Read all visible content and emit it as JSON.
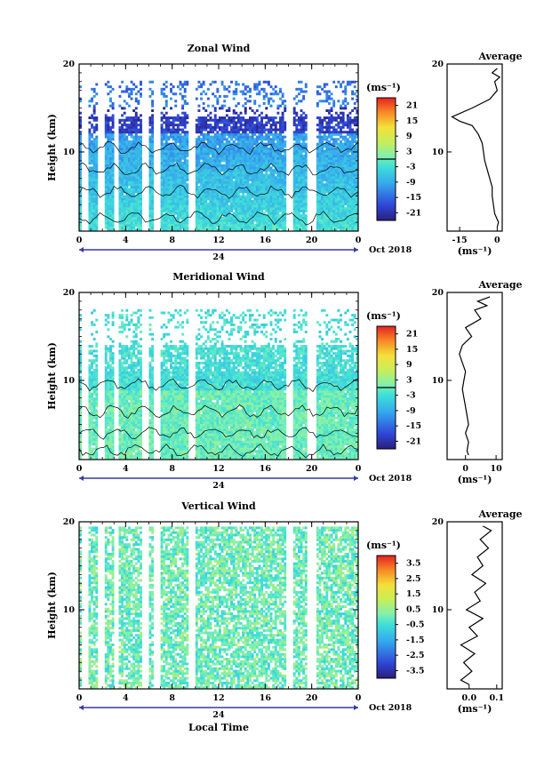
{
  "chart_data": [
    {
      "type": "heatmap",
      "title": "Zonal Wind",
      "ylabel": "Height (km)",
      "xlabel": "",
      "xlim": [
        0,
        24
      ],
      "ylim": [
        1,
        20
      ],
      "x_ticks": [
        "0",
        "4",
        "8",
        "12",
        "16",
        "20",
        "0"
      ],
      "y_ticks": [
        "10",
        "20"
      ],
      "date_label": "24",
      "date_suffix": "Oct 2018",
      "colorbar": {
        "unit": "(ms⁻¹)",
        "ticks": [
          "21",
          "15",
          "9",
          "3",
          "-3",
          "-9",
          "-15",
          "-21"
        ],
        "range": [
          -24,
          24
        ]
      },
      "profile": {
        "title": "Average",
        "xlabel": "(ms⁻¹)",
        "xlim": [
          -20,
          2
        ],
        "x_ticks": [
          "-15",
          "0"
        ],
        "heights": [
          1.5,
          2,
          3,
          4,
          5,
          6,
          7,
          8,
          9,
          10,
          11,
          12,
          13,
          13.5,
          14,
          15,
          16,
          17,
          18,
          18.5,
          19,
          19.5
        ],
        "values": [
          0,
          0.5,
          -1,
          -1.5,
          -2,
          -2,
          -3,
          -4,
          -5,
          -5.5,
          -6,
          -7.5,
          -10,
          -15,
          -18,
          -10,
          -3,
          0,
          -1,
          1,
          -2,
          0
        ]
      }
    },
    {
      "type": "heatmap",
      "title": "Meridional Wind",
      "ylabel": "Height (km)",
      "xlabel": "",
      "xlim": [
        0,
        24
      ],
      "ylim": [
        1,
        20
      ],
      "x_ticks": [
        "0",
        "4",
        "8",
        "12",
        "16",
        "20",
        "0"
      ],
      "y_ticks": [
        "10",
        "20"
      ],
      "date_label": "24",
      "date_suffix": "Oct 2018",
      "colorbar": {
        "unit": "(ms⁻¹)",
        "ticks": [
          "21",
          "15",
          "9",
          "3",
          "-3",
          "-9",
          "-15",
          "-21"
        ],
        "range": [
          -24,
          24
        ]
      },
      "profile": {
        "title": "Average",
        "xlabel": "(ms⁻¹)",
        "xlim": [
          -6,
          12
        ],
        "x_ticks": [
          "0",
          "10"
        ],
        "heights": [
          1.5,
          2,
          3,
          4,
          5,
          6,
          7,
          8,
          9,
          10,
          11,
          12,
          13,
          14,
          15,
          16,
          17,
          18,
          18.5,
          19,
          19.5
        ],
        "values": [
          1,
          0.5,
          1,
          0,
          1,
          0.5,
          0,
          -0.5,
          -1,
          -0.5,
          0,
          -1,
          -2,
          -1,
          2,
          0,
          5,
          3,
          7,
          4,
          8
        ]
      }
    },
    {
      "type": "heatmap",
      "title": "Vertical Wind",
      "ylabel": "Height (km)",
      "xlabel": "Local Time",
      "xlim": [
        0,
        24
      ],
      "ylim": [
        1,
        20
      ],
      "x_ticks": [
        "0",
        "4",
        "8",
        "12",
        "16",
        "20",
        "0"
      ],
      "y_ticks": [
        "10",
        "20"
      ],
      "date_label": "24",
      "date_suffix": "Oct 2018",
      "colorbar": {
        "unit": "(ms⁻¹)",
        "ticks": [
          "3.5",
          "2.5",
          "1.5",
          "0.5",
          "-0.5",
          "-1.5",
          "-2.5",
          "-3.5"
        ],
        "range": [
          -4,
          4
        ]
      },
      "profile": {
        "title": "Average",
        "xlabel": "(ms⁻¹)",
        "xlim": [
          -0.08,
          0.12
        ],
        "x_ticks": [
          "0.0",
          "0.1"
        ],
        "heights": [
          1.5,
          2,
          3,
          4,
          5,
          6,
          7,
          8,
          9,
          10,
          11,
          12,
          13,
          14,
          15,
          16,
          17,
          18,
          19,
          19.5
        ],
        "values": [
          0,
          -0.03,
          0.01,
          -0.02,
          0.02,
          -0.03,
          0.03,
          0,
          0.05,
          -0.01,
          0.04,
          0.02,
          0.06,
          0.01,
          0.05,
          0.03,
          0.07,
          0.04,
          0.08,
          0.05
        ]
      }
    }
  ]
}
